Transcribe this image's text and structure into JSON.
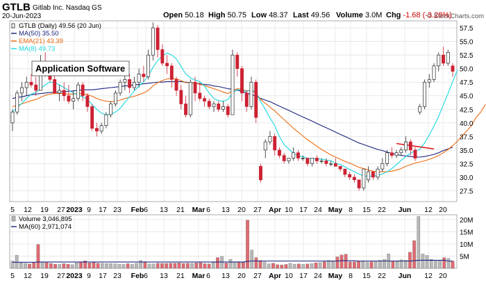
{
  "header": {
    "ticker": "GTLB",
    "company": "Gitlab Inc.  Nasdaq GS",
    "date": "20-Jun-2023",
    "stats": [
      {
        "label": "Open",
        "value": "50.18"
      },
      {
        "label": "High",
        "value": "50.75"
      },
      {
        "label": "Low",
        "value": "48.37"
      },
      {
        "label": "Last",
        "value": "49.56"
      },
      {
        "label": "Volume",
        "value": "3.0M"
      },
      {
        "label": "Chg",
        "value": "-1.68 (-3.28%)",
        "color": "#cc0000"
      }
    ],
    "watermark": "© StockCharts.com"
  },
  "annotation": "Application Software",
  "colors": {
    "up": "#ffffff",
    "down": "#cc2233",
    "ma50": "#1a237e",
    "ema21": "#ee6a11",
    "ma8": "#19d7e0",
    "vol_up": "#b8b8b8",
    "vol_down": "#e06a72",
    "trendline": "#dd1111"
  },
  "chart_data": [
    {
      "type": "candlestick",
      "ylim": [
        25.5,
        58.8
      ],
      "ytick_labels": [
        "27.5",
        "30.0",
        "32.5",
        "35.0",
        "37.5",
        "40.0",
        "42.5",
        "45.0",
        "47.5",
        "50.0",
        "52.5",
        "55.0",
        "57.5"
      ],
      "x_labels": [
        "5",
        "12",
        "19",
        "27",
        "2023",
        "9",
        "17",
        "23",
        "Feb",
        "6",
        "13",
        "21",
        "Mar",
        "6",
        "13",
        "20",
        "27",
        "Apr",
        "10",
        "17",
        "24",
        "May",
        "8",
        "15",
        "22",
        "Jun",
        "12",
        "20"
      ],
      "month_labels": [
        "2023",
        "Feb",
        "Mar",
        "Apr",
        "May",
        "Jun"
      ],
      "legend": [
        {
          "key": "price",
          "text": "GTLB (Daily) 49.56 (20 Jun)"
        },
        {
          "key": "ma50",
          "text": "MA(50) 35.50"
        },
        {
          "key": "ema21",
          "text": "EMA(21) 43.39"
        },
        {
          "key": "ma8",
          "text": "MA(8) 49.73"
        }
      ],
      "ohlc": [
        [
          40,
          42.5,
          38.5,
          42
        ],
        [
          42,
          46,
          41.5,
          45.5
        ],
        [
          45.5,
          47.5,
          44,
          46.5
        ],
        [
          46.5,
          48.5,
          45,
          47.5
        ],
        [
          47.5,
          49,
          46.5,
          47
        ],
        [
          47,
          48.5,
          45,
          46
        ],
        [
          46,
          52.5,
          46,
          51
        ],
        [
          51,
          53,
          48.5,
          49.5
        ],
        [
          49.5,
          50.5,
          47.5,
          48
        ],
        [
          48,
          49,
          45.5,
          45.5
        ],
        [
          45.5,
          47,
          44,
          46
        ],
        [
          46,
          47.5,
          44,
          45
        ],
        [
          45,
          47,
          43.5,
          44
        ],
        [
          44,
          46,
          42.5,
          44.5
        ],
        [
          44.5,
          47.5,
          44,
          47
        ],
        [
          47,
          47.5,
          44,
          45
        ],
        [
          45,
          45.5,
          42,
          43
        ],
        [
          43,
          43.5,
          38.5,
          39
        ],
        [
          39,
          40,
          37.5,
          38.5
        ],
        [
          38.5,
          40,
          38,
          39.5
        ],
        [
          39.5,
          42,
          39,
          41.5
        ],
        [
          41.5,
          44,
          41,
          43.5
        ],
        [
          43.5,
          46,
          43,
          45.5
        ],
        [
          45.5,
          48,
          45,
          47.5
        ],
        [
          47.5,
          49.5,
          46,
          48
        ],
        [
          48,
          49,
          45.5,
          46.5
        ],
        [
          46.5,
          48.5,
          46,
          47.5
        ],
        [
          47.5,
          50,
          46.5,
          49
        ],
        [
          49,
          50.5,
          47.5,
          48.5
        ],
        [
          48.5,
          53.5,
          48,
          52.5
        ],
        [
          52.5,
          58.5,
          51.5,
          57.5
        ],
        [
          57.5,
          58,
          52,
          53.5
        ],
        [
          53.5,
          54.5,
          50.5,
          51
        ],
        [
          51,
          52.5,
          49,
          50.5
        ],
        [
          50.5,
          51,
          46.5,
          48
        ],
        [
          48,
          48.5,
          45,
          46
        ],
        [
          46,
          47,
          42.5,
          43.5
        ],
        [
          43.5,
          45,
          41,
          41.5
        ],
        [
          41.5,
          48,
          41,
          47.5
        ],
        [
          47.5,
          48.5,
          44,
          45.5
        ],
        [
          45.5,
          47.5,
          44,
          44.5
        ],
        [
          44.5,
          45,
          43,
          44
        ],
        [
          44,
          44.5,
          42.5,
          43
        ],
        [
          43,
          44,
          42,
          43.5
        ],
        [
          43.5,
          44,
          42,
          42.5
        ],
        [
          42.5,
          44,
          42,
          43
        ],
        [
          43,
          43.5,
          41,
          41.5
        ],
        [
          41.5,
          53.5,
          41.5,
          52.5
        ],
        [
          52.5,
          53,
          48.5,
          50
        ],
        [
          50,
          50.5,
          44,
          45.5
        ],
        [
          45.5,
          46,
          42,
          43
        ],
        [
          43,
          48.5,
          42.5,
          47.5
        ],
        [
          47.5,
          48,
          40,
          41
        ],
        [
          32,
          32.5,
          29,
          29.5
        ],
        [
          35,
          37,
          33.5,
          36.5
        ],
        [
          36.5,
          38.5,
          36,
          37.5
        ],
        [
          37.5,
          38,
          34,
          35
        ],
        [
          35,
          35.5,
          33.5,
          34
        ],
        [
          34,
          34.5,
          32.5,
          33
        ],
        [
          33,
          33.5,
          32.5,
          33.5
        ],
        [
          33.5,
          35.5,
          33,
          34.5
        ],
        [
          34.5,
          35,
          33,
          33.5
        ],
        [
          33.5,
          34,
          33,
          33.5
        ],
        [
          33.5,
          33.5,
          32,
          32.5
        ],
        [
          32.5,
          33.5,
          32,
          33.5
        ],
        [
          33.5,
          34,
          32.5,
          33
        ],
        [
          33,
          33.5,
          32.5,
          33
        ],
        [
          33,
          33.5,
          32,
          32.5
        ],
        [
          32.5,
          33,
          32,
          32.5
        ],
        [
          32.5,
          33.5,
          32,
          32
        ],
        [
          32,
          32,
          31,
          31.5
        ],
        [
          31.5,
          31.5,
          30,
          30.5
        ],
        [
          30.5,
          31,
          29.5,
          30
        ],
        [
          30,
          30.5,
          29,
          29.5
        ],
        [
          29.5,
          29.5,
          27.5,
          28
        ],
        [
          28,
          31.5,
          27.5,
          31.5
        ],
        [
          29.5,
          32,
          29,
          31
        ],
        [
          31,
          31,
          29.5,
          30
        ],
        [
          30,
          32,
          29.5,
          31.5
        ],
        [
          31.5,
          33.5,
          31,
          32.5
        ],
        [
          32.5,
          35,
          32,
          34.5
        ],
        [
          34.5,
          35.5,
          33.5,
          34
        ],
        [
          34,
          35,
          33.5,
          34.5
        ],
        [
          34.5,
          35.5,
          34,
          35
        ],
        [
          35,
          37.5,
          34.5,
          36.5
        ],
        [
          36.5,
          37,
          34,
          35
        ],
        [
          35,
          35.5,
          33,
          33.5
        ],
        [
          42,
          43.5,
          41.5,
          43
        ],
        [
          43,
          48,
          42.5,
          47.5
        ],
        [
          47.5,
          49,
          46.5,
          48
        ],
        [
          48,
          51,
          47.5,
          50.5
        ],
        [
          50.5,
          53,
          49.5,
          52.5
        ],
        [
          52.5,
          54,
          50.5,
          51
        ],
        [
          51,
          53.5,
          50.5,
          53
        ],
        [
          50.5,
          51,
          48.5,
          49.5
        ]
      ],
      "ma50": [
        44.5,
        44.7,
        44.8,
        45,
        45.2,
        45.3,
        45.4,
        45.5,
        45.6,
        45.6,
        45.7,
        45.8,
        45.8,
        45.9,
        46,
        46.1,
        46.1,
        46.1,
        46.2,
        46.3,
        46.4,
        46.5,
        46.6,
        46.7,
        46.8,
        46.9,
        47,
        47.1,
        47.2,
        47.3,
        47.4,
        47.5,
        47.5,
        47.6,
        47.6,
        47.6,
        47.6,
        47.5,
        47.4,
        47.3,
        47.2,
        47.1,
        47,
        46.8,
        46.7,
        46.5,
        46.3,
        46.2,
        46,
        45.8,
        45.5,
        45.2,
        44.9,
        44.5,
        44.2,
        43.9,
        43.5,
        43.1,
        42.7,
        42.3,
        41.9,
        41.5,
        41.1,
        40.7,
        40.3,
        39.9,
        39.5,
        39.1,
        38.7,
        38.3,
        37.9,
        37.5,
        37.1,
        36.7,
        36.3,
        36,
        35.7,
        35.4,
        35.1,
        34.9,
        34.6,
        34.4,
        34.2,
        34,
        33.9,
        33.8,
        33.7,
        33.7,
        33.8,
        34,
        34.2,
        34.5,
        34.9,
        35.2,
        35.5
      ],
      "ema21": [
        43,
        43.2,
        43.5,
        43.8,
        44.1,
        44.3,
        44.7,
        45.1,
        45.3,
        45.4,
        45.4,
        45.4,
        45.3,
        45.3,
        45.4,
        45.4,
        45.2,
        44.9,
        44.5,
        44.2,
        44,
        43.9,
        44,
        44.2,
        44.5,
        44.7,
        44.9,
        45.2,
        45.5,
        46,
        46.8,
        47.4,
        47.8,
        48.1,
        48.2,
        48.1,
        47.8,
        47.4,
        47.4,
        47.3,
        47.1,
        46.9,
        46.6,
        46.3,
        46,
        45.7,
        45.4,
        45.9,
        46.3,
        46.2,
        45.9,
        46,
        45.5,
        44.3,
        43.6,
        42.9,
        42.2,
        41.4,
        40.6,
        39.8,
        39,
        38.3,
        37.6,
        36.9,
        36.3,
        35.7,
        35.1,
        34.6,
        34.1,
        33.7,
        33.3,
        32.9,
        32.6,
        32.2,
        31.8,
        31.6,
        31.3,
        31.1,
        31,
        31,
        31,
        31.1,
        31.3,
        31.6,
        32,
        32.3,
        32.6,
        32.8,
        33,
        33.3,
        33.6,
        34,
        34.5,
        35.1,
        35.8,
        36.6,
        37.6,
        38.5,
        39.5,
        41,
        42,
        43.39
      ],
      "ma8": [
        42,
        42.8,
        43.6,
        44.5,
        45.3,
        45.6,
        46.3,
        47,
        47.5,
        47.4,
        47,
        46.5,
        46,
        45.5,
        45.1,
        44.8,
        44.3,
        43.4,
        42.5,
        41.8,
        41.5,
        41.6,
        42,
        42.7,
        43.8,
        44.8,
        45.9,
        46.8,
        47.6,
        48.7,
        50.2,
        51.5,
        52.3,
        52.9,
        52.5,
        51.8,
        50.4,
        49,
        48.3,
        47.9,
        47.6,
        46.8,
        45.5,
        44.5,
        44.1,
        44,
        44.3,
        45.5,
        46.1,
        46.1,
        45.8,
        46,
        45.7,
        43.9,
        42.5,
        40.9,
        39.5,
        37.5,
        36,
        35.2,
        34.4,
        33.9,
        33.8,
        33.5,
        33.4,
        33.4,
        33.3,
        33.2,
        33,
        32.6,
        32.3,
        31.9,
        31.4,
        31,
        30.6,
        30.2,
        30.2,
        30.2,
        30.3,
        30.6,
        31,
        31.6,
        32.3,
        33.1,
        33.8,
        34.4,
        34.9,
        35.1,
        36.3,
        37.8,
        39.4,
        41.2,
        43.3,
        45.4,
        47.6,
        49.73
      ]
    },
    {
      "type": "bar",
      "ylim": [
        0,
        22000000
      ],
      "ytick_labels": [
        "5M",
        "10M",
        "15M",
        "20M"
      ],
      "legend": [
        {
          "key": "vol",
          "text": "Volume 3,046,895"
        },
        {
          "key": "ma60",
          "text": "MA(60) 2,971,074"
        }
      ],
      "values": [
        3.0,
        5.4,
        2.2,
        2.0,
        1.8,
        2.3,
        9.8,
        2.5,
        2.3,
        2.0,
        1.7,
        1.6,
        1.9,
        1.7,
        1.5,
        2.2,
        2.6,
        3.1,
        2.2,
        2.4,
        2.1,
        2.0,
        1.9,
        1.9,
        1.8,
        1.7,
        1.6,
        1.9,
        1.6,
        2.0,
        3.2,
        2.7,
        1.8,
        1.8,
        2.1,
        2.0,
        2.0,
        2.1,
        2.1,
        2.2,
        2.0,
        2.1,
        2.0,
        2.2,
        2.3,
        1.9,
        1.8,
        2.4,
        4.4,
        4.9,
        2.2,
        3.7,
        2.7,
        2.7,
        2.4,
        19.8,
        7.5,
        4.4,
        3.2,
        2.6,
        1.8,
        2.1,
        1.5,
        1.4,
        1.6,
        2.1,
        1.7,
        1.8,
        1.6,
        1.8,
        1.9,
        2.3,
        2.4,
        2.7,
        3.2,
        2.8,
        4.7,
        5.5,
        5.8,
        2.7,
        2.7,
        2.9,
        2.8,
        2.6,
        2.7,
        2.9,
        3.2,
        3.7,
        5.9,
        3.0,
        2.8,
        3.5,
        3.3,
        6.6,
        11.4,
        21.3,
        5.9,
        5.3,
        3.7,
        3.2,
        3.3,
        4.4,
        4.1,
        3.0
      ],
      "ma60": [
        2.5,
        2.5,
        2.5,
        2.5,
        2.5,
        2.5,
        2.6,
        2.6,
        2.6,
        2.6,
        2.6,
        2.6,
        2.6,
        2.6,
        2.6,
        2.6,
        2.6,
        2.6,
        2.6,
        2.6,
        2.6,
        2.6,
        2.6,
        2.6,
        2.6,
        2.6,
        2.6,
        2.6,
        2.6,
        2.6,
        2.6,
        2.6,
        2.6,
        2.6,
        2.6,
        2.6,
        2.6,
        2.6,
        2.6,
        2.6,
        2.6,
        2.6,
        2.6,
        2.6,
        2.6,
        2.6,
        2.6,
        2.6,
        2.6,
        2.6,
        2.6,
        2.6,
        2.6,
        2.6,
        2.6,
        2.9,
        3.0,
        3.0,
        3.0,
        3.0,
        3.0,
        3.0,
        3.0,
        3.0,
        3.0,
        3.0,
        3.0,
        3.0,
        3.0,
        3.0,
        3.0,
        3.0,
        3.0,
        3.0,
        3.0,
        3.0,
        3.0,
        3.1,
        3.1,
        3.1,
        3.1,
        3.0,
        3.0,
        3.0,
        3.0,
        3.0,
        3.0,
        3.0,
        3.0,
        3.0,
        3.0,
        3.0,
        3.0,
        3.0,
        3.1,
        3.3,
        3.3,
        3.3,
        3.3,
        3.3,
        3.3,
        3.3,
        3.0,
        2.971074
      ]
    }
  ]
}
